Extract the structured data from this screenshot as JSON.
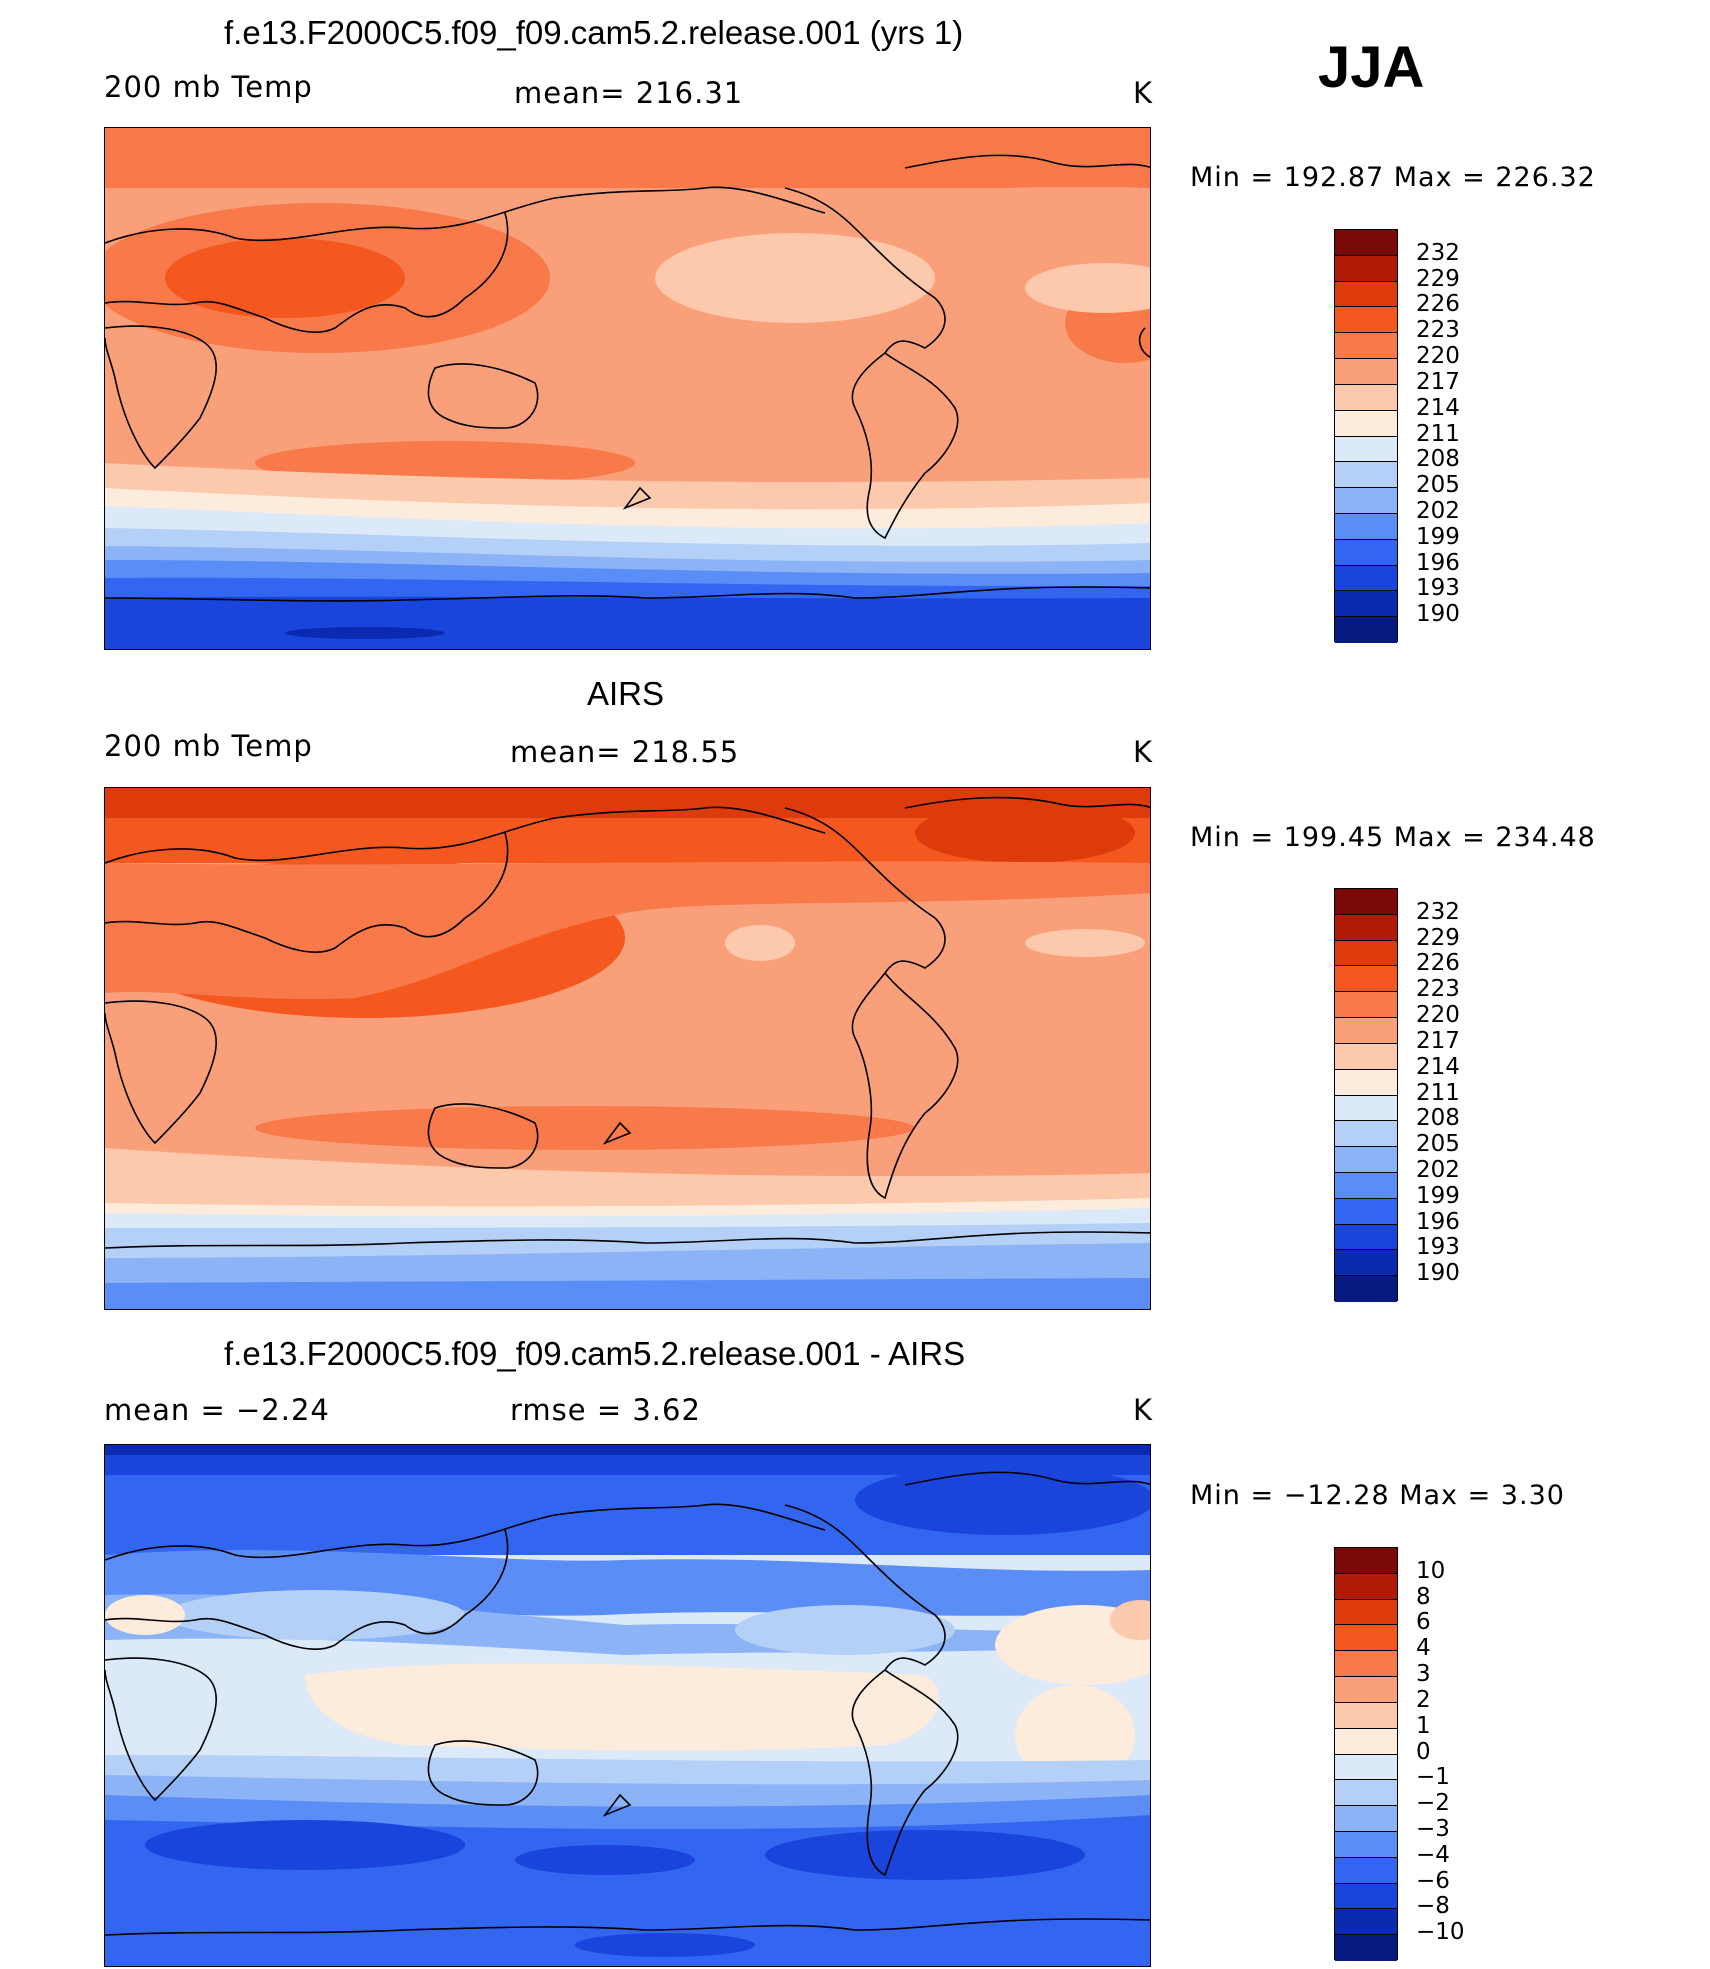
{
  "season": "JJA",
  "panels": [
    {
      "title": "f.e13.F2000C5.f09_f09.cam5.2.release.001 (yrs 1)",
      "left_label": "200 mb Temp",
      "center_label": "mean= 216.31",
      "units": "K",
      "min_max": "Min = 192.87 Max = 226.32",
      "kind": "model"
    },
    {
      "title": "AIRS",
      "left_label": "200 mb Temp",
      "center_label": "mean= 218.55",
      "units": "K",
      "min_max": "Min = 199.45 Max = 234.48",
      "kind": "obs"
    },
    {
      "title": "f.e13.F2000C5.f09_f09.cam5.2.release.001 - AIRS",
      "left_label": "mean = −2.24",
      "center_label": "rmse = 3.62",
      "units": "K",
      "min_max": "Min = −12.28 Max = 3.30",
      "kind": "diff"
    }
  ],
  "colorbar_abs": {
    "labels": [
      "232",
      "229",
      "226",
      "223",
      "220",
      "217",
      "214",
      "211",
      "208",
      "205",
      "202",
      "199",
      "196",
      "193",
      "190"
    ],
    "colors": [
      "#7a0a07",
      "#b01a06",
      "#dd3b0b",
      "#f5581f",
      "#f8794a",
      "#f9a07b",
      "#fcc9ad",
      "#fdebdc",
      "#dce9f9",
      "#b5d0f6",
      "#8cb3f5",
      "#5a8df5",
      "#3366f0",
      "#1a45dd",
      "#0a2ab0",
      "#061a80"
    ]
  },
  "colorbar_diff": {
    "labels": [
      "10",
      "8",
      "6",
      "4",
      "3",
      "2",
      "1",
      "0",
      "−1",
      "−2",
      "−3",
      "−4",
      "−6",
      "−8",
      "−10"
    ],
    "colors": [
      "#7a0a07",
      "#b01a06",
      "#dd3b0b",
      "#f5581f",
      "#f8794a",
      "#f9a07b",
      "#fcc9ad",
      "#fdebdc",
      "#dce9f9",
      "#b5d0f6",
      "#8cb3f5",
      "#5a8df5",
      "#3366f0",
      "#1a45dd",
      "#0a2ab0",
      "#061a80"
    ]
  }
}
